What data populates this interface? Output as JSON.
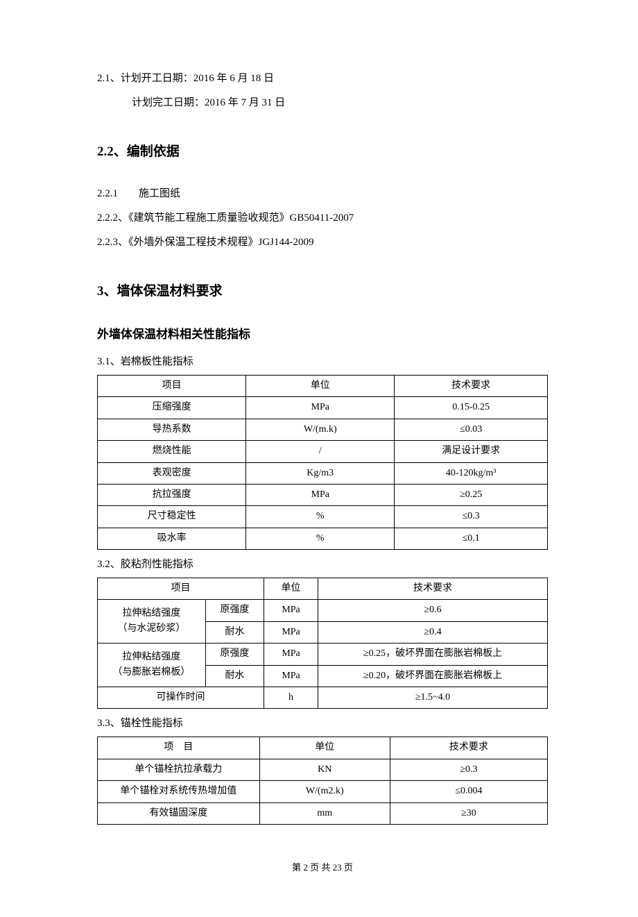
{
  "section21": {
    "line1": "2.1、计划开工日期：2016 年 6 月 18 日",
    "line2": "计划完工日期：2016 年 7 月 31 日"
  },
  "section22": {
    "heading": "2.2、编制依据",
    "item1": "2.2.1　　施工图纸",
    "item2": "2.2.2、《建筑节能工程施工质量验收规范》GB50411-2007",
    "item3": "2.2.3、《外墙外保温工程技术规程》JGJ144-2009"
  },
  "section3": {
    "heading": "3、墙体保温材料要求",
    "subheading": "外墙体保温材料相关性能指标"
  },
  "table1": {
    "label": "3.1、岩棉板性能指标",
    "header": {
      "c1": "项目",
      "c2": "单位",
      "c3": "技术要求"
    },
    "rows": [
      {
        "c1": "压缩强度",
        "c2": "MPa",
        "c3": "0.15-0.25"
      },
      {
        "c1": "导热系数",
        "c2": "W/(m.k)",
        "c3": "≤0.03"
      },
      {
        "c1": "燃烧性能",
        "c2": "/",
        "c3": "满足设计要求"
      },
      {
        "c1": "表观密度",
        "c2": "Kg/m3",
        "c3": "40-120kg/m³"
      },
      {
        "c1": "抗拉强度",
        "c2": "MPa",
        "c3": "≥0.25"
      },
      {
        "c1": "尺寸稳定性",
        "c2": "%",
        "c3": "≤0.3"
      },
      {
        "c1": "吸水率",
        "c2": "%",
        "c3": "≤0.1"
      }
    ]
  },
  "table2": {
    "label": "3.2、胶粘剂性能指标",
    "header": {
      "c1": "项目",
      "c2": "单位",
      "c3": "技术要求"
    },
    "rows": [
      {
        "a": "拉伸粘结强度",
        "a2": "（与水泥砂浆）",
        "b1": "原强度",
        "b2": "耐水",
        "c1": "MPa",
        "c2": "MPa",
        "d1": "≥0.6",
        "d2": "≥0.4"
      },
      {
        "a": "拉伸粘结强度",
        "a2": "（与膨胀岩棉板）",
        "b1": "原强度",
        "b2": "耐水",
        "c1": "MPa",
        "c2": "MPa",
        "d1": "≥0.25，破坏界面在膨胀岩棉板上",
        "d2": "≥0.20，破坏界面在膨胀岩棉板上"
      }
    ],
    "lastrow": {
      "a": "可操作时间",
      "c": "h",
      "d": "≥1.5~4.0"
    }
  },
  "table3": {
    "label": "3.3、锚栓性能指标",
    "header": {
      "c1_a": "项",
      "c1_b": "目",
      "c2": "单位",
      "c3": "技术要求"
    },
    "rows": [
      {
        "c1": "单个锚栓抗拉承载力",
        "c2": "KN",
        "c3": "≥0.3"
      },
      {
        "c1": "单个锚栓对系统传热增加值",
        "c2": "W/(m2.k)",
        "c3": "≤0.004"
      },
      {
        "c1": "有效锚固深度",
        "c2": "mm",
        "c3": "≥30"
      }
    ]
  },
  "footer": "第 2 页 共 23 页"
}
